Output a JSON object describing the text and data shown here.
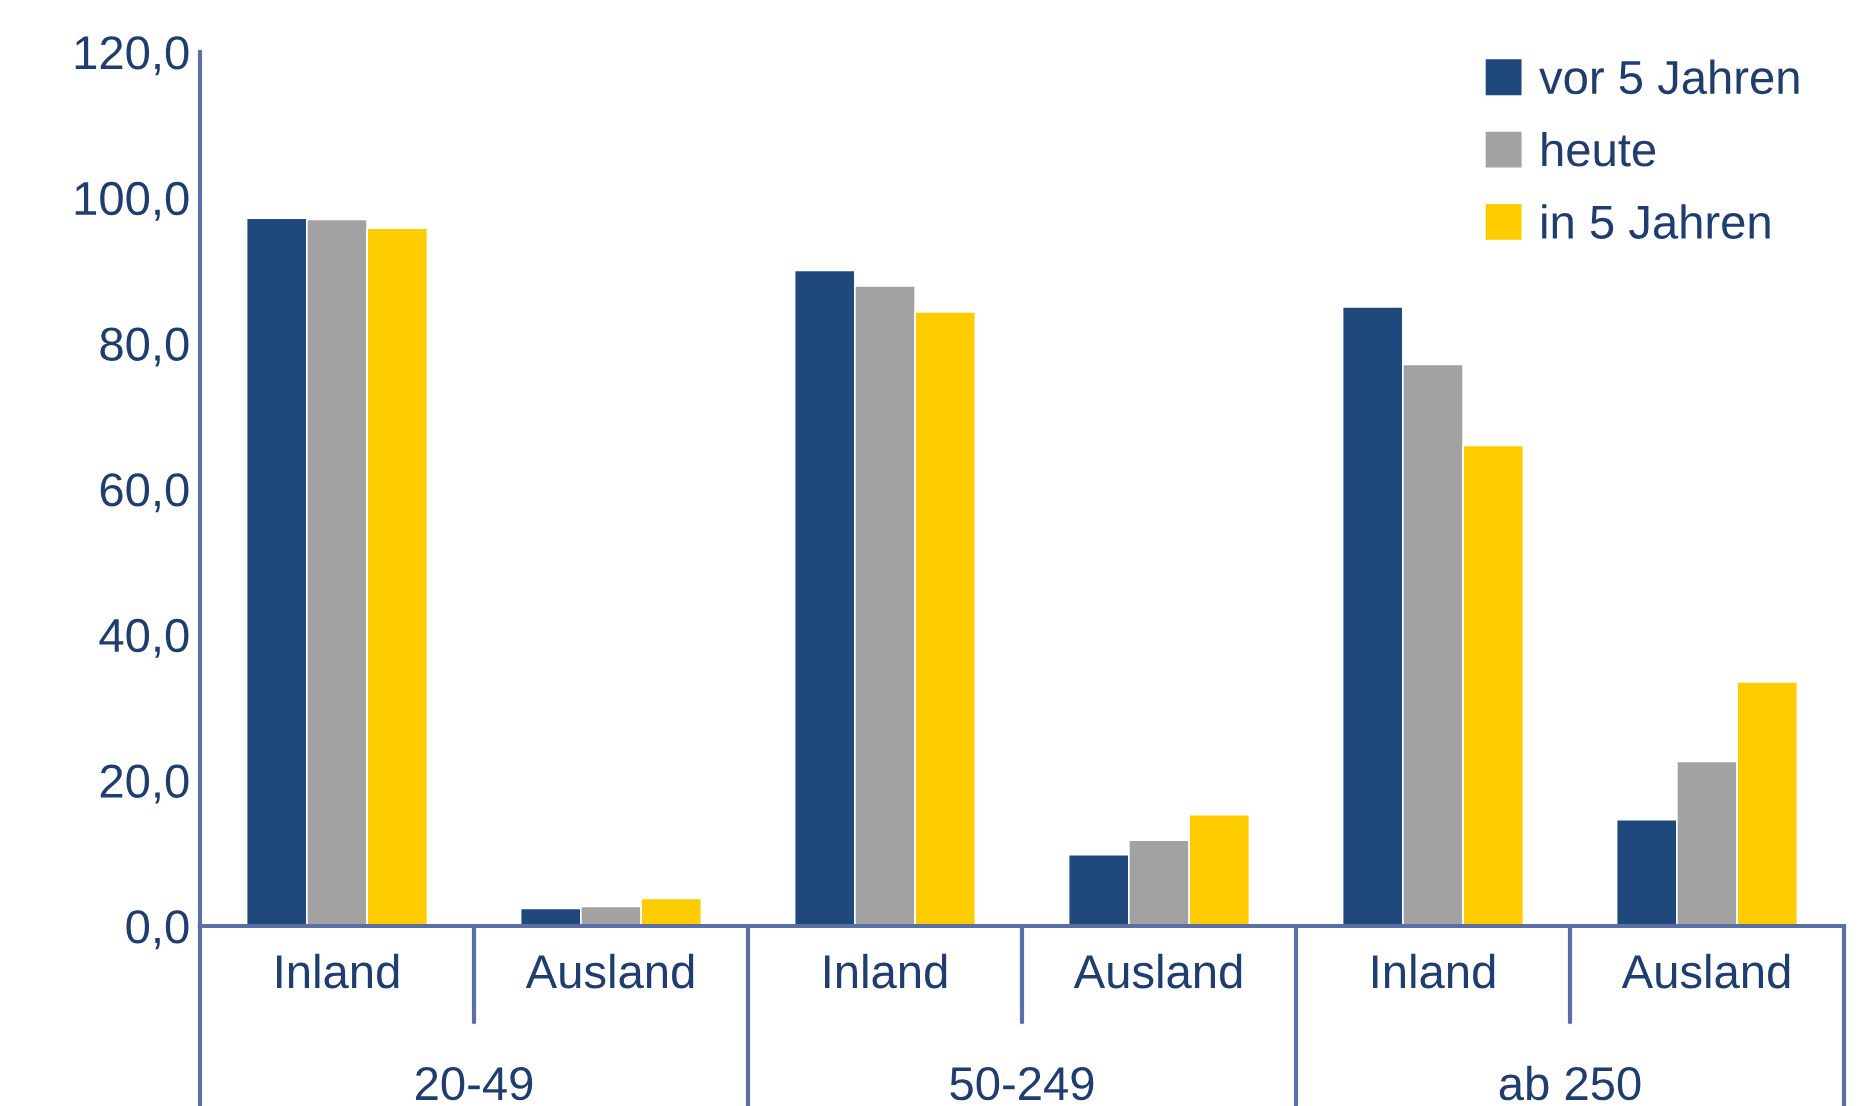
{
  "chart_data": {
    "type": "bar",
    "categories": [
      "Inland",
      "Ausland",
      "Inland",
      "Ausland",
      "Inland",
      "Ausland"
    ],
    "annotations": [
      "20-49",
      "50-249",
      "ab 250"
    ],
    "series": [
      {
        "name": "vor 5 Jahren",
        "color": "#1f497d",
        "values": [
          97.2,
          2.4,
          90.0,
          9.8,
          85.0,
          14.6
        ]
      },
      {
        "name": "heute",
        "color": "#a2a2a2",
        "values": [
          97.0,
          2.7,
          87.9,
          11.8,
          77.1,
          22.6
        ]
      },
      {
        "name": "in 5 Jahren",
        "color": "#ffcc00",
        "values": [
          95.8,
          3.8,
          84.3,
          15.3,
          66.0,
          33.5
        ]
      }
    ],
    "ylim": [
      0,
      120
    ],
    "yticks": [
      {
        "value": 0,
        "label": "0,0"
      },
      {
        "value": 20,
        "label": "20,0"
      },
      {
        "value": 40,
        "label": "40,0"
      },
      {
        "value": 60,
        "label": "60,0"
      },
      {
        "value": 80,
        "label": "80,0"
      },
      {
        "value": 100,
        "label": "100,0"
      },
      {
        "value": 120,
        "label": "120,0"
      }
    ],
    "legend": "top right",
    "grid": false
  }
}
